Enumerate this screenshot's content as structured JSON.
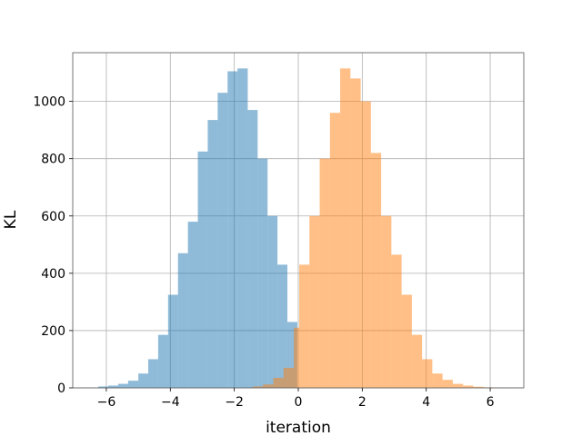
{
  "chart_data": {
    "type": "bar",
    "histogram": true,
    "xlabel": "iteration",
    "ylabel": "KL",
    "xlim": [
      -7.05,
      7.05
    ],
    "ylim": [
      0,
      1170
    ],
    "xticks": [
      -6,
      -4,
      -2,
      0,
      2,
      4,
      6
    ],
    "yticks": [
      0,
      200,
      400,
      600,
      800,
      1000
    ],
    "xtick_labels": [
      "−6",
      "−4",
      "−2",
      "0",
      "2",
      "4",
      "6"
    ],
    "ytick_labels": [
      "0",
      "200",
      "400",
      "600",
      "800",
      "1000"
    ],
    "grid": true,
    "series": [
      {
        "color": "#1f77b4",
        "alpha": 0.5,
        "bin_edges": [
          -6.25,
          -5.94,
          -5.63,
          -5.32,
          -5.0,
          -4.69,
          -4.38,
          -4.07,
          -3.76,
          -3.45,
          -3.14,
          -2.83,
          -2.52,
          -2.21,
          -1.9,
          -1.58,
          -1.27,
          -0.96,
          -0.65,
          -0.34,
          -0.03,
          0.0
        ],
        "counts": [
          5,
          8,
          14,
          25,
          50,
          100,
          185,
          325,
          470,
          580,
          825,
          935,
          1030,
          1105,
          1115,
          970,
          800,
          600,
          430,
          230,
          0
        ]
      },
      {
        "color": "#ff7f0e",
        "alpha": 0.5,
        "bin_edges": [
          -1.42,
          -1.1,
          -0.78,
          -0.46,
          -0.14,
          0.03,
          0.35,
          0.67,
          0.99,
          1.31,
          1.63,
          1.95,
          2.27,
          2.59,
          2.91,
          3.23,
          3.55,
          3.87,
          4.19,
          4.51,
          4.83,
          5.15,
          5.47,
          5.79,
          6.11,
          6.5
        ],
        "counts": [
          5,
          12,
          35,
          70,
          210,
          430,
          600,
          800,
          960,
          1115,
          1080,
          1000,
          820,
          600,
          465,
          325,
          185,
          100,
          50,
          28,
          14,
          8,
          4,
          2,
          1
        ]
      }
    ]
  }
}
